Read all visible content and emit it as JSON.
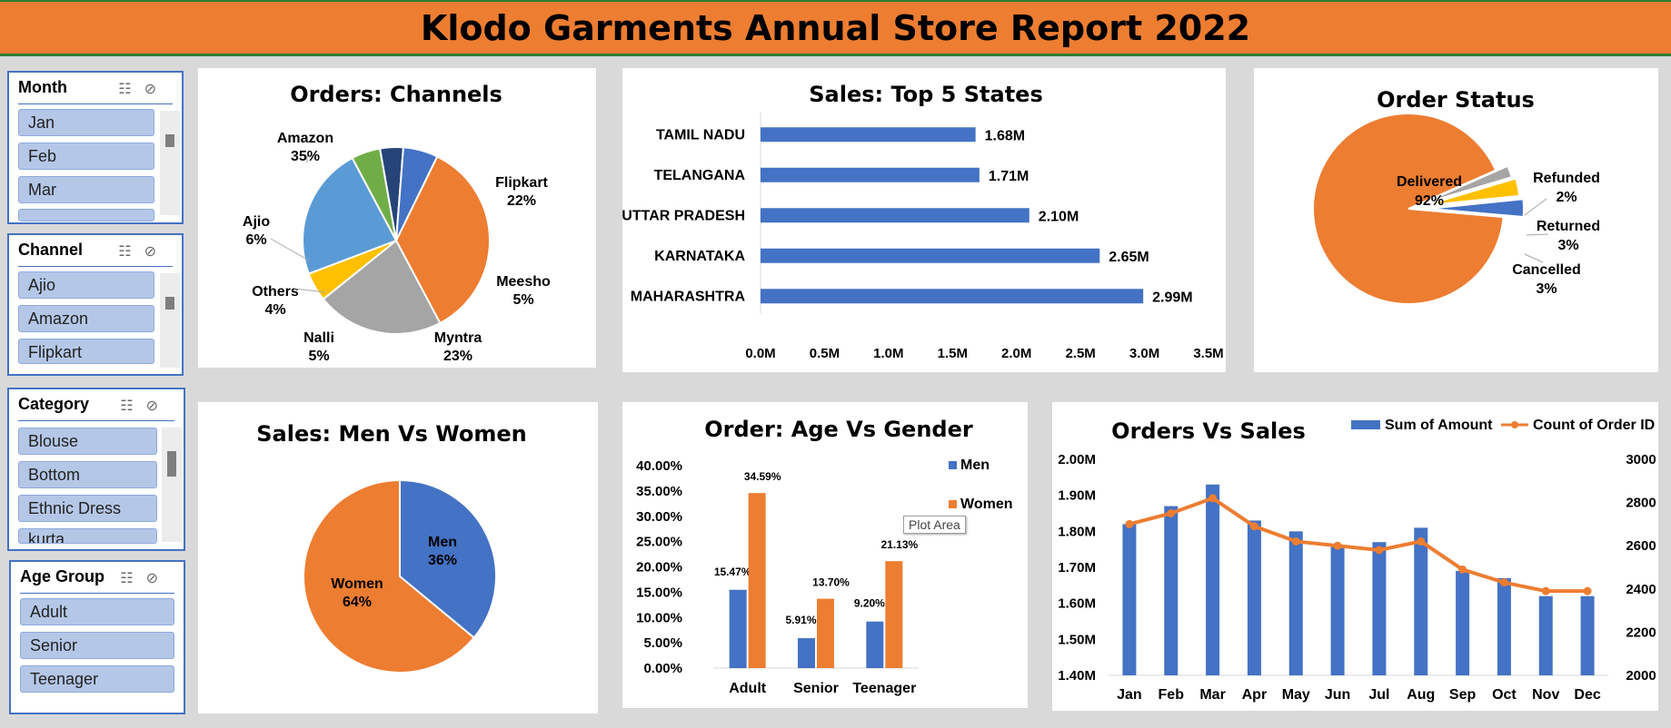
{
  "banner": {
    "title": "Klodo Garments Annual Store Report 2022"
  },
  "slicers": [
    {
      "title": "Month",
      "items": [
        "Jan",
        "Feb",
        "Mar"
      ]
    },
    {
      "title": "Channel",
      "items": [
        "Ajio",
        "Amazon",
        "Flipkart"
      ]
    },
    {
      "title": "Category",
      "items": [
        "Blouse",
        "Bottom",
        "Ethnic Dress",
        "kurta"
      ]
    },
    {
      "title": "Age Group",
      "items": [
        "Adult",
        "Senior",
        "Teenager"
      ]
    }
  ],
  "tooltip": "Plot Area",
  "chart_data": [
    {
      "id": "channels",
      "type": "pie",
      "title": "Orders: Channels",
      "slices": [
        {
          "label": "Amazon",
          "value": 35,
          "pct": "35%",
          "color": "#ed7d31"
        },
        {
          "label": "Flipkart",
          "value": 22,
          "pct": "22%",
          "color": "#a5a5a5"
        },
        {
          "label": "Meesho",
          "value": 5,
          "pct": "5%",
          "color": "#ffc000"
        },
        {
          "label": "Myntra",
          "value": 23,
          "pct": "23%",
          "color": "#5b9bd5"
        },
        {
          "label": "Nalli",
          "value": 5,
          "pct": "5%",
          "color": "#70ad47"
        },
        {
          "label": "Others",
          "value": 4,
          "pct": "4%",
          "color": "#264478"
        },
        {
          "label": "Ajio",
          "value": 6,
          "pct": "6%",
          "color": "#4472c4"
        }
      ]
    },
    {
      "id": "states",
      "type": "bar",
      "orientation": "horizontal",
      "title": "Sales: Top 5 States",
      "categories": [
        "TAMIL NADU",
        "TELANGANA",
        "UTTAR PRADESH",
        "KARNATAKA",
        "MAHARASHTRA"
      ],
      "values": [
        1.68,
        1.71,
        2.1,
        2.65,
        2.99
      ],
      "value_labels": [
        "1.68M",
        "1.71M",
        "2.10M",
        "2.65M",
        "2.99M"
      ],
      "xlim": [
        0,
        3.5
      ],
      "ticks": [
        "0.0M",
        "0.5M",
        "1.0M",
        "1.5M",
        "2.0M",
        "2.5M",
        "3.0M",
        "3.5M"
      ],
      "color": "#4472c4"
    },
    {
      "id": "status",
      "type": "pie",
      "title": "Order Status",
      "slices": [
        {
          "label": "Delivered",
          "value": 92,
          "pct": "92%",
          "color": "#ed7d31"
        },
        {
          "label": "Refunded",
          "value": 2,
          "pct": "2%",
          "color": "#a5a5a5"
        },
        {
          "label": "Returned",
          "value": 3,
          "pct": "3%",
          "color": "#ffc000"
        },
        {
          "label": "Cancelled",
          "value": 3,
          "pct": "3%",
          "color": "#4472c4"
        }
      ]
    },
    {
      "id": "gender",
      "type": "pie",
      "title": "Sales: Men Vs Women",
      "slices": [
        {
          "label": "Men",
          "value": 36,
          "pct": "36%",
          "color": "#4472c4"
        },
        {
          "label": "Women",
          "value": 64,
          "pct": "64%",
          "color": "#ed7d31"
        }
      ]
    },
    {
      "id": "agegender",
      "type": "bar",
      "title": "Order: Age Vs Gender",
      "categories": [
        "Adult",
        "Senior",
        "Teenager"
      ],
      "series": [
        {
          "name": "Men",
          "values": [
            15.47,
            5.91,
            9.2
          ],
          "labels": [
            "15.47%",
            "5.91%",
            "9.20%"
          ],
          "color": "#4472c4"
        },
        {
          "name": "Women",
          "values": [
            34.59,
            13.7,
            21.13
          ],
          "labels": [
            "34.59%",
            "13.70%",
            "21.13%"
          ],
          "color": "#ed7d31"
        }
      ],
      "ylim": [
        0,
        40
      ],
      "ticks": [
        "0.00%",
        "5.00%",
        "10.00%",
        "15.00%",
        "20.00%",
        "25.00%",
        "30.00%",
        "35.00%",
        "40.00%"
      ],
      "legend": "right"
    },
    {
      "id": "ordersales",
      "type": "bar+line",
      "title": "Orders Vs Sales",
      "categories": [
        "Jan",
        "Feb",
        "Mar",
        "Apr",
        "May",
        "Jun",
        "Jul",
        "Aug",
        "Sep",
        "Oct",
        "Nov",
        "Dec"
      ],
      "series": [
        {
          "name": "Sum of Amount",
          "axis": "left",
          "color": "#4472c4",
          "values": [
            1.82,
            1.87,
            1.93,
            1.83,
            1.8,
            1.76,
            1.77,
            1.81,
            1.69,
            1.67,
            1.62,
            1.62
          ]
        },
        {
          "name": "Count of Order ID",
          "axis": "right",
          "color": "#ed7d31",
          "values": [
            2700,
            2750,
            2820,
            2690,
            2620,
            2600,
            2580,
            2620,
            2490,
            2430,
            2390,
            2390
          ]
        }
      ],
      "ylim_left": [
        1.4,
        2.0
      ],
      "ticks_left": [
        "1.40M",
        "1.50M",
        "1.60M",
        "1.70M",
        "1.80M",
        "1.90M",
        "2.00M"
      ],
      "ylim_right": [
        2000,
        3000
      ],
      "ticks_right": [
        "2000",
        "2200",
        "2400",
        "2600",
        "2800",
        "3000"
      ],
      "legend": "top-right"
    }
  ]
}
